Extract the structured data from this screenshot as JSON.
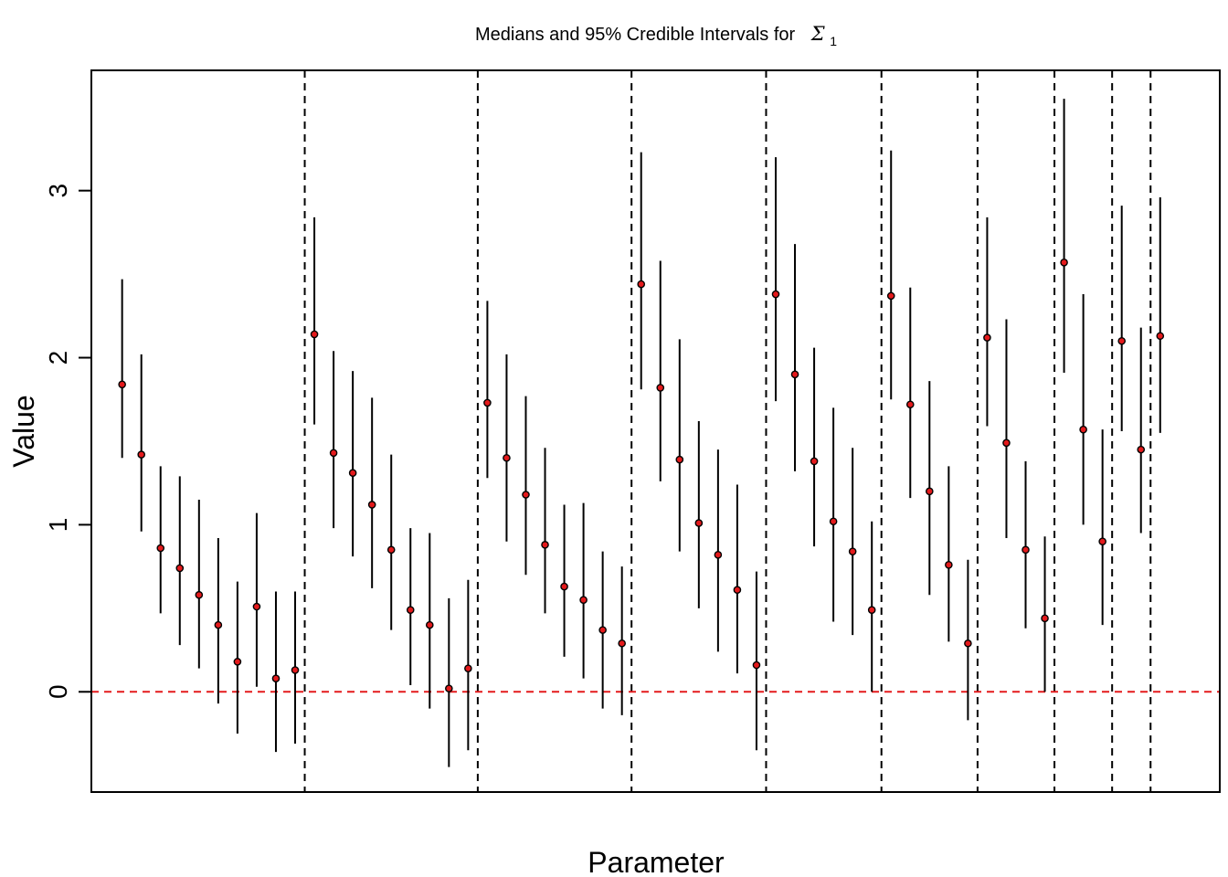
{
  "chart_data": {
    "type": "scatter",
    "title": "Medians and 95% Credible Intervals for",
    "title_symbol": "Σ",
    "title_subscript": "1",
    "xlabel": "Parameter",
    "ylabel": "Value",
    "ylim": [
      -0.6,
      3.72
    ],
    "yticks": [
      0,
      1,
      2,
      3
    ],
    "xlim": [
      -1.6,
      57.1
    ],
    "grid": false,
    "reference_line": {
      "y": 0,
      "color": "#e41a1c",
      "style": "dashed"
    },
    "group_separators_after_index": [
      10,
      19,
      27,
      34,
      40,
      45,
      49,
      52,
      54
    ],
    "point_color": "#e41a1c",
    "series": [
      {
        "median": [
          1.84,
          1.42,
          0.86,
          0.74,
          0.58,
          0.4,
          0.18,
          0.51,
          0.08,
          0.13,
          2.14,
          1.43,
          1.31,
          1.12,
          0.85,
          0.49,
          0.4,
          0.02,
          0.14,
          1.73,
          1.4,
          1.18,
          0.88,
          0.63,
          0.55,
          0.37,
          0.29,
          2.44,
          1.82,
          1.39,
          1.01,
          0.82,
          0.61,
          0.16,
          2.38,
          1.9,
          1.38,
          1.02,
          0.84,
          0.49,
          2.37,
          1.72,
          1.2,
          0.76,
          0.29,
          2.12,
          1.49,
          0.85,
          0.44,
          2.57,
          1.57,
          0.9,
          2.1,
          1.45,
          2.13
        ],
        "lower": [
          1.4,
          0.96,
          0.47,
          0.28,
          0.14,
          -0.07,
          -0.25,
          0.03,
          -0.36,
          -0.31,
          1.6,
          0.98,
          0.81,
          0.62,
          0.37,
          0.04,
          -0.1,
          -0.45,
          -0.35,
          1.28,
          0.9,
          0.7,
          0.47,
          0.21,
          0.08,
          -0.1,
          -0.14,
          1.81,
          1.26,
          0.84,
          0.5,
          0.24,
          0.11,
          -0.35,
          1.74,
          1.32,
          0.87,
          0.42,
          0.34,
          0.0,
          1.75,
          1.16,
          0.58,
          0.3,
          -0.17,
          1.59,
          0.92,
          0.38,
          0.0,
          1.91,
          1.0,
          0.4,
          1.56,
          0.95,
          1.55
        ],
        "upper": [
          2.47,
          2.02,
          1.35,
          1.29,
          1.15,
          0.92,
          0.66,
          1.07,
          0.6,
          0.6,
          2.84,
          2.04,
          1.92,
          1.76,
          1.42,
          0.98,
          0.95,
          0.56,
          0.67,
          2.34,
          2.02,
          1.77,
          1.46,
          1.12,
          1.13,
          0.84,
          0.75,
          3.23,
          2.58,
          2.11,
          1.62,
          1.45,
          1.24,
          0.72,
          3.2,
          2.68,
          2.06,
          1.7,
          1.46,
          1.02,
          3.24,
          2.42,
          1.86,
          1.35,
          0.79,
          2.84,
          2.23,
          1.38,
          0.93,
          3.55,
          2.38,
          1.57,
          2.91,
          2.18,
          2.96
        ]
      }
    ]
  }
}
